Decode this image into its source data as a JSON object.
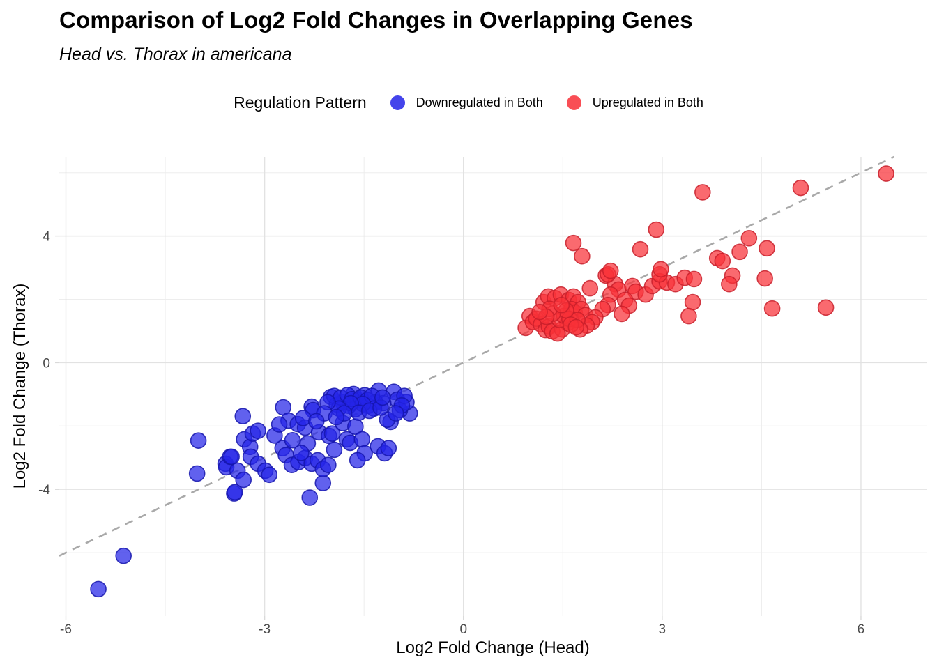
{
  "header": {
    "title": "Comparison of Log2 Fold Changes in Overlapping Genes",
    "subtitle": "Head vs. Thorax in americana"
  },
  "legend": {
    "title": "Regulation Pattern",
    "items": [
      {
        "label": "Downregulated in Both",
        "color": "#2424E8"
      },
      {
        "label": "Upregulated in Both",
        "color": "#F83038"
      }
    ]
  },
  "chart_data": {
    "type": "scatter",
    "title": "Comparison of Log2 Fold Changes in Overlapping Genes",
    "subtitle": "Head vs. Thorax in americana",
    "xlabel": "Log2 Fold Change (Head)",
    "ylabel": "Log2 Fold Change (Thorax)",
    "xlim": [
      -6.1,
      7.0
    ],
    "ylim": [
      -8.0,
      6.5
    ],
    "xticks": [
      -6,
      -3,
      0,
      3,
      6
    ],
    "yticks": [
      -4,
      0,
      4
    ],
    "xminor": [
      -4.5,
      -1.5,
      1.5,
      4.5
    ],
    "yminor": [
      -6,
      -2,
      2,
      6
    ],
    "grid": true,
    "legend_position": "top",
    "reference_line": {
      "type": "identity y=x",
      "style": "dashed",
      "color": "#A9A9A9"
    },
    "point_style": {
      "radius": 11,
      "fill_opacity": 0.72,
      "stroke_opacity": 0.85
    },
    "series": [
      {
        "name": "Downregulated in Both",
        "color": "#2424E8",
        "stroke": "#1515AD",
        "points": [
          [
            -5.51,
            -7.15
          ],
          [
            -5.13,
            -6.1
          ],
          [
            -4.02,
            -3.5
          ],
          [
            -4.0,
            -2.46
          ],
          [
            -3.59,
            -3.19
          ],
          [
            -3.58,
            -3.3
          ],
          [
            -3.52,
            -2.97
          ],
          [
            -3.5,
            -2.97
          ],
          [
            -3.46,
            -4.13
          ],
          [
            -3.45,
            -4.09
          ],
          [
            -3.41,
            -3.41
          ],
          [
            -3.33,
            -1.69
          ],
          [
            -3.32,
            -3.7
          ],
          [
            -3.31,
            -2.42
          ],
          [
            -3.22,
            -2.66
          ],
          [
            -3.21,
            -2.97
          ],
          [
            -3.18,
            -2.24
          ],
          [
            -3.1,
            -2.15
          ],
          [
            -3.1,
            -3.19
          ],
          [
            -2.99,
            -3.41
          ],
          [
            -2.93,
            -3.54
          ],
          [
            -2.32,
            -4.26
          ],
          [
            -2.12,
            -3.8
          ],
          [
            -2.72,
            -1.41
          ],
          [
            -2.0,
            -1.08
          ],
          [
            -1.66,
            -0.99
          ],
          [
            -1.6,
            -1.17
          ],
          [
            -1.49,
            -1.03
          ],
          [
            -1.28,
            -0.88
          ],
          [
            -1.05,
            -0.92
          ],
          [
            -1.0,
            -1.17
          ],
          [
            -1.21,
            -1.28
          ],
          [
            -1.33,
            -1.25
          ],
          [
            -1.44,
            -1.36
          ],
          [
            -1.63,
            -1.47
          ],
          [
            -1.73,
            -1.36
          ],
          [
            -1.82,
            -1.25
          ],
          [
            -1.91,
            -1.32
          ],
          [
            -2.29,
            -1.39
          ],
          [
            -2.27,
            -1.5
          ],
          [
            -2.64,
            -1.83
          ],
          [
            -2.5,
            -1.94
          ],
          [
            -2.39,
            -2.05
          ],
          [
            -2.18,
            -2.2
          ],
          [
            -2.03,
            -2.31
          ],
          [
            -1.98,
            -2.24
          ],
          [
            -1.76,
            -2.42
          ],
          [
            -1.71,
            -2.53
          ],
          [
            -1.82,
            -1.91
          ],
          [
            -1.63,
            -2.02
          ],
          [
            -1.53,
            -2.42
          ],
          [
            -1.49,
            -2.86
          ],
          [
            -1.6,
            -3.08
          ],
          [
            -1.29,
            -2.64
          ],
          [
            -1.19,
            -2.86
          ],
          [
            -1.13,
            -2.7
          ],
          [
            -2.73,
            -2.7
          ],
          [
            -2.68,
            -2.92
          ],
          [
            -2.59,
            -3.23
          ],
          [
            -2.49,
            -3.14
          ],
          [
            -2.39,
            -3.01
          ],
          [
            -2.29,
            -3.19
          ],
          [
            -2.2,
            -3.08
          ],
          [
            -2.12,
            -3.36
          ],
          [
            -2.04,
            -3.23
          ],
          [
            -0.81,
            -1.6
          ],
          [
            -0.96,
            -1.5
          ],
          [
            -0.86,
            -1.25
          ],
          [
            -1.1,
            -1.87
          ],
          [
            -1.15,
            -1.8
          ],
          [
            -0.89,
            -1.05
          ],
          [
            -0.93,
            -1.35
          ],
          [
            -1.02,
            -1.6
          ],
          [
            -1.95,
            -1.05
          ],
          [
            -1.85,
            -1.1
          ],
          [
            -1.75,
            -1.02
          ],
          [
            -1.68,
            -1.15
          ],
          [
            -1.55,
            -1.1
          ],
          [
            -1.45,
            -1.18
          ],
          [
            -1.38,
            -1.05
          ],
          [
            -1.35,
            -1.45
          ],
          [
            -1.52,
            -1.3
          ],
          [
            -1.7,
            -1.28
          ],
          [
            -1.88,
            -1.45
          ],
          [
            -2.05,
            -1.25
          ],
          [
            -2.1,
            -1.6
          ],
          [
            -1.58,
            -1.58
          ],
          [
            -1.42,
            -1.52
          ],
          [
            -1.25,
            -1.42
          ],
          [
            -1.22,
            -1.1
          ],
          [
            -1.8,
            -1.6
          ],
          [
            -1.92,
            -1.72
          ],
          [
            -2.42,
            -1.75
          ],
          [
            -2.22,
            -1.85
          ],
          [
            -2.58,
            -2.45
          ],
          [
            -2.35,
            -2.55
          ],
          [
            -2.85,
            -2.3
          ],
          [
            -2.78,
            -1.95
          ],
          [
            -1.95,
            -2.75
          ],
          [
            -2.45,
            -2.85
          ]
        ]
      },
      {
        "name": "Upregulated in Both",
        "color": "#F83038",
        "stroke": "#C81E2A",
        "points": [
          [
            1.0,
            1.47
          ],
          [
            0.94,
            1.1
          ],
          [
            1.05,
            1.28
          ],
          [
            1.1,
            1.39
          ],
          [
            1.17,
            1.21
          ],
          [
            1.24,
            1.03
          ],
          [
            1.29,
            1.14
          ],
          [
            1.34,
            0.99
          ],
          [
            1.21,
            1.91
          ],
          [
            1.28,
            2.09
          ],
          [
            1.38,
            2.04
          ],
          [
            1.47,
            2.15
          ],
          [
            1.59,
            1.98
          ],
          [
            1.66,
            2.09
          ],
          [
            1.73,
            1.91
          ],
          [
            1.63,
            1.69
          ],
          [
            1.68,
            1.58
          ],
          [
            1.78,
            1.69
          ],
          [
            1.84,
            1.5
          ],
          [
            1.91,
            2.35
          ],
          [
            2.15,
            2.75
          ],
          [
            2.29,
            2.48
          ],
          [
            2.34,
            2.31
          ],
          [
            2.22,
            2.15
          ],
          [
            2.18,
            1.82
          ],
          [
            2.1,
            1.69
          ],
          [
            1.99,
            1.43
          ],
          [
            1.94,
            1.28
          ],
          [
            1.86,
            1.17
          ],
          [
            1.76,
            1.05
          ],
          [
            1.57,
            1.25
          ],
          [
            1.49,
            1.05
          ],
          [
            1.42,
            0.92
          ],
          [
            2.55,
            2.42
          ],
          [
            2.6,
            2.24
          ],
          [
            2.44,
            1.98
          ],
          [
            2.5,
            1.8
          ],
          [
            2.39,
            1.54
          ],
          [
            2.75,
            2.15
          ],
          [
            2.85,
            2.42
          ],
          [
            2.96,
            2.57
          ],
          [
            3.07,
            2.53
          ],
          [
            3.2,
            2.48
          ],
          [
            3.34,
            2.68
          ],
          [
            3.48,
            2.64
          ],
          [
            2.18,
            2.79
          ],
          [
            2.96,
            2.79
          ],
          [
            3.46,
            1.91
          ],
          [
            3.4,
            1.47
          ],
          [
            1.45,
            1.35
          ],
          [
            1.52,
            1.48
          ],
          [
            1.6,
            1.38
          ],
          [
            1.72,
            1.35
          ],
          [
            1.55,
            1.65
          ],
          [
            1.35,
            1.55
          ],
          [
            1.3,
            1.7
          ],
          [
            1.48,
            1.82
          ],
          [
            1.62,
            1.2
          ],
          [
            1.7,
            1.12
          ],
          [
            1.25,
            1.45
          ],
          [
            1.15,
            1.6
          ],
          [
            1.66,
            3.78
          ],
          [
            1.79,
            3.36
          ],
          [
            2.91,
            4.2
          ],
          [
            2.67,
            3.58
          ],
          [
            2.98,
            2.95
          ],
          [
            2.22,
            2.9
          ],
          [
            3.61,
            5.38
          ],
          [
            5.09,
            5.52
          ],
          [
            6.38,
            5.97
          ],
          [
            4.31,
            3.93
          ],
          [
            4.17,
            3.5
          ],
          [
            4.58,
            3.61
          ],
          [
            3.83,
            3.3
          ],
          [
            3.91,
            3.21
          ],
          [
            4.06,
            2.75
          ],
          [
            4.01,
            2.48
          ],
          [
            4.55,
            2.66
          ],
          [
            4.66,
            1.71
          ],
          [
            5.47,
            1.74
          ]
        ]
      }
    ]
  }
}
